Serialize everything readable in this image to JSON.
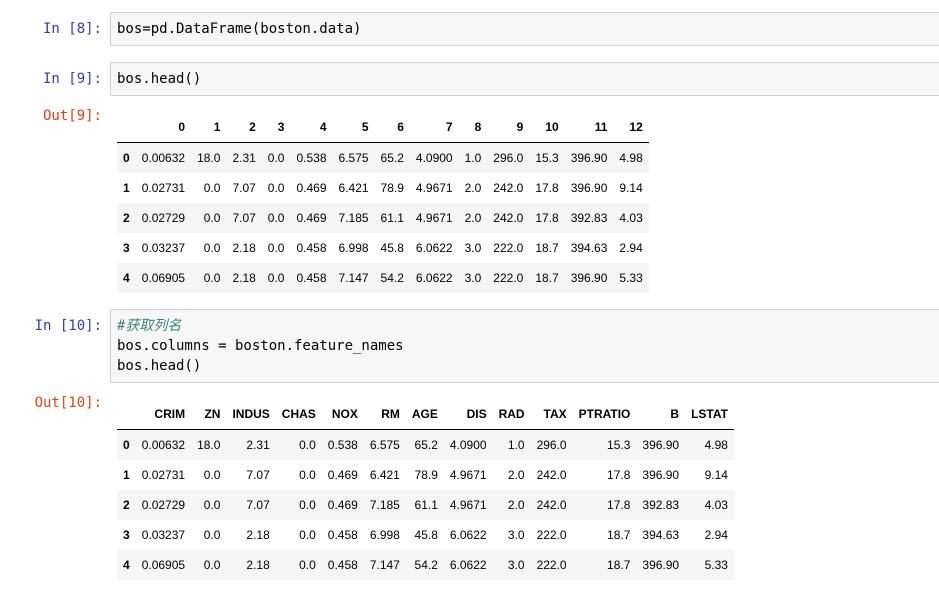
{
  "cells": [
    {
      "prompt": "In [8]:",
      "code": [
        "bos=pd.DataFrame(boston.data)"
      ]
    },
    {
      "prompt": "In [9]:",
      "code": [
        "bos.head()"
      ],
      "output": {
        "prompt": "Out[9]:",
        "table": {
          "columns": [
            "0",
            "1",
            "2",
            "3",
            "4",
            "5",
            "6",
            "7",
            "8",
            "9",
            "10",
            "11",
            "12"
          ],
          "rows": [
            {
              "index": "0",
              "cells": [
                "0.00632",
                "18.0",
                "2.31",
                "0.0",
                "0.538",
                "6.575",
                "65.2",
                "4.0900",
                "1.0",
                "296.0",
                "15.3",
                "396.90",
                "4.98"
              ]
            },
            {
              "index": "1",
              "cells": [
                "0.02731",
                "0.0",
                "7.07",
                "0.0",
                "0.469",
                "6.421",
                "78.9",
                "4.9671",
                "2.0",
                "242.0",
                "17.8",
                "396.90",
                "9.14"
              ]
            },
            {
              "index": "2",
              "cells": [
                "0.02729",
                "0.0",
                "7.07",
                "0.0",
                "0.469",
                "7.185",
                "61.1",
                "4.9671",
                "2.0",
                "242.0",
                "17.8",
                "392.83",
                "4.03"
              ]
            },
            {
              "index": "3",
              "cells": [
                "0.03237",
                "0.0",
                "2.18",
                "0.0",
                "0.458",
                "6.998",
                "45.8",
                "6.0622",
                "3.0",
                "222.0",
                "18.7",
                "394.63",
                "2.94"
              ]
            },
            {
              "index": "4",
              "cells": [
                "0.06905",
                "0.0",
                "2.18",
                "0.0",
                "0.458",
                "7.147",
                "54.2",
                "6.0622",
                "3.0",
                "222.0",
                "18.7",
                "396.90",
                "5.33"
              ]
            }
          ]
        }
      }
    },
    {
      "prompt": "In [10]:",
      "code": [
        "#获取列名",
        "bos.columns = boston.feature_names",
        "bos.head()"
      ],
      "output": {
        "prompt": "Out[10]:",
        "table": {
          "columns": [
            "CRIM",
            "ZN",
            "INDUS",
            "CHAS",
            "NOX",
            "RM",
            "AGE",
            "DIS",
            "RAD",
            "TAX",
            "PTRATIO",
            "B",
            "LSTAT"
          ],
          "rows": [
            {
              "index": "0",
              "cells": [
                "0.00632",
                "18.0",
                "2.31",
                "0.0",
                "0.538",
                "6.575",
                "65.2",
                "4.0900",
                "1.0",
                "296.0",
                "15.3",
                "396.90",
                "4.98"
              ]
            },
            {
              "index": "1",
              "cells": [
                "0.02731",
                "0.0",
                "7.07",
                "0.0",
                "0.469",
                "6.421",
                "78.9",
                "4.9671",
                "2.0",
                "242.0",
                "17.8",
                "396.90",
                "9.14"
              ]
            },
            {
              "index": "2",
              "cells": [
                "0.02729",
                "0.0",
                "7.07",
                "0.0",
                "0.469",
                "7.185",
                "61.1",
                "4.9671",
                "2.0",
                "242.0",
                "17.8",
                "392.83",
                "4.03"
              ]
            },
            {
              "index": "3",
              "cells": [
                "0.03237",
                "0.0",
                "2.18",
                "0.0",
                "0.458",
                "6.998",
                "45.8",
                "6.0622",
                "3.0",
                "222.0",
                "18.7",
                "394.63",
                "2.94"
              ]
            },
            {
              "index": "4",
              "cells": [
                "0.06905",
                "0.0",
                "2.18",
                "0.0",
                "0.458",
                "7.147",
                "54.2",
                "6.0622",
                "3.0",
                "222.0",
                "18.7",
                "396.90",
                "5.33"
              ]
            }
          ]
        }
      }
    }
  ]
}
